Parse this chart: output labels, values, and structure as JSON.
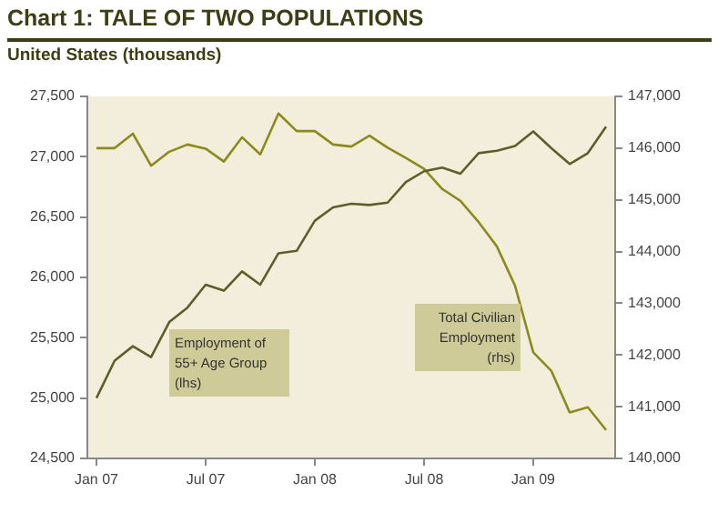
{
  "chart_data": {
    "type": "line",
    "title": "Chart 1: TALE OF TWO POPULATIONS",
    "subtitle": "United States (thousands)",
    "categories": [
      "Jan 07",
      null,
      null,
      null,
      null,
      null,
      "Jul 07",
      null,
      null,
      null,
      null,
      null,
      "Jan 08",
      null,
      null,
      null,
      null,
      null,
      "Jul 08",
      null,
      null,
      null,
      null,
      null,
      "Jan 09",
      null,
      null,
      null,
      null
    ],
    "series": [
      {
        "name": "Employment of 55+ Age Group (lhs)",
        "color": "#5e5e2a",
        "values": [
          25000,
          25310,
          25430,
          25340,
          25630,
          25750,
          25940,
          25890,
          26050,
          25940,
          26200,
          26220,
          26470,
          26580,
          26610,
          26600,
          26620,
          26790,
          26880,
          26910,
          26860,
          27030,
          27050,
          27090,
          27210,
          27070,
          26940,
          27030,
          27250
        ]
      },
      {
        "name": "Total Civilian Employment (rhs)",
        "color": "#8c8a1e",
        "axis": "y2",
        "values": [
          146000,
          146000,
          146280,
          145660,
          145930,
          146070,
          145990,
          145740,
          146210,
          145880,
          146670,
          146330,
          146330,
          146070,
          146030,
          146240,
          146010,
          145810,
          145600,
          145210,
          144980,
          144570,
          144100,
          143340,
          142050,
          141690,
          140890,
          140990,
          140550
        ]
      }
    ],
    "ylim": [
      24500,
      27500
    ],
    "yticks": [
      {
        "value": 24500,
        "label": "24,500"
      },
      {
        "value": 25000,
        "label": "25,000"
      },
      {
        "value": 25500,
        "label": "25,500"
      },
      {
        "value": 26000,
        "label": "26,000"
      },
      {
        "value": 26500,
        "label": "26,500"
      },
      {
        "value": 27000,
        "label": "27,000"
      },
      {
        "value": 27500,
        "label": "27,500"
      }
    ],
    "y2lim": [
      140000,
      147000
    ],
    "y2ticks": [
      {
        "value": 140000,
        "label": "140,000"
      },
      {
        "value": 141000,
        "label": "141,000"
      },
      {
        "value": 142000,
        "label": "142,000"
      },
      {
        "value": 143000,
        "label": "143,000"
      },
      {
        "value": 144000,
        "label": "144,000"
      },
      {
        "value": 145000,
        "label": "145,000"
      },
      {
        "value": 146000,
        "label": "146,000"
      },
      {
        "value": 147000,
        "label": "147,000"
      }
    ],
    "grid": false,
    "legend": false,
    "marker": "none",
    "line_style": "solid"
  }
}
